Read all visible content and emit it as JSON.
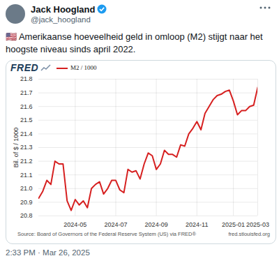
{
  "tweet": {
    "name": "Jack Hoogland",
    "handle": "@jack_hoogland",
    "text": "🇺🇸 Amerikaanse hoeveelheid geld in omloop (M2) stijgt naar het hoogste niveau sinds april 2022.",
    "timestamp": "2:33 PM · Mar 26, 2025"
  },
  "chart_data": {
    "type": "line",
    "logo": "FRED",
    "y_label": "Bil. of $ / 1000",
    "source": "Source: Board of Governors of the Federal Reserve System (US) via FRED®",
    "site": "fred.stlouisfed.org",
    "categories": [
      null,
      null,
      null,
      null,
      null,
      null,
      null,
      null,
      null,
      "2024-05",
      null,
      null,
      null,
      null,
      null,
      null,
      null,
      null,
      null,
      "2024-07",
      null,
      null,
      null,
      null,
      null,
      null,
      null,
      null,
      null,
      "2024-09",
      null,
      null,
      null,
      null,
      null,
      null,
      null,
      null,
      null,
      "2024-11",
      null,
      null,
      null,
      null,
      null,
      null,
      null,
      null,
      "2025-01",
      null,
      null,
      null,
      null,
      null,
      "2025-03"
    ],
    "series": [
      {
        "name": "M2 / 1000",
        "color": "#d62020",
        "values": [
          20.93,
          20.98,
          21.06,
          21.03,
          21.2,
          21.18,
          21.18,
          20.91,
          20.84,
          20.92,
          20.88,
          20.91,
          20.86,
          21.0,
          21.03,
          21.05,
          20.96,
          21.0,
          21.06,
          21.06,
          20.99,
          20.97,
          21.14,
          21.12,
          21.13,
          21.07,
          21.18,
          21.26,
          21.24,
          21.14,
          21.18,
          21.28,
          21.25,
          21.25,
          21.23,
          21.32,
          21.31,
          21.4,
          21.44,
          21.49,
          21.43,
          21.55,
          21.6,
          21.65,
          21.68,
          21.69,
          21.71,
          21.72,
          21.64,
          21.54,
          21.57,
          21.57,
          21.6,
          21.61,
          21.74
        ]
      }
    ],
    "ylim": [
      20.8,
      21.8
    ],
    "yticks": [
      20.8,
      20.9,
      {
        "value": 21,
        "label": "21.0"
      },
      21.1,
      21.2,
      21.3,
      21.4,
      21.5,
      21.6,
      21.7,
      21.8
    ],
    "grid": true,
    "legend": "top-left"
  }
}
